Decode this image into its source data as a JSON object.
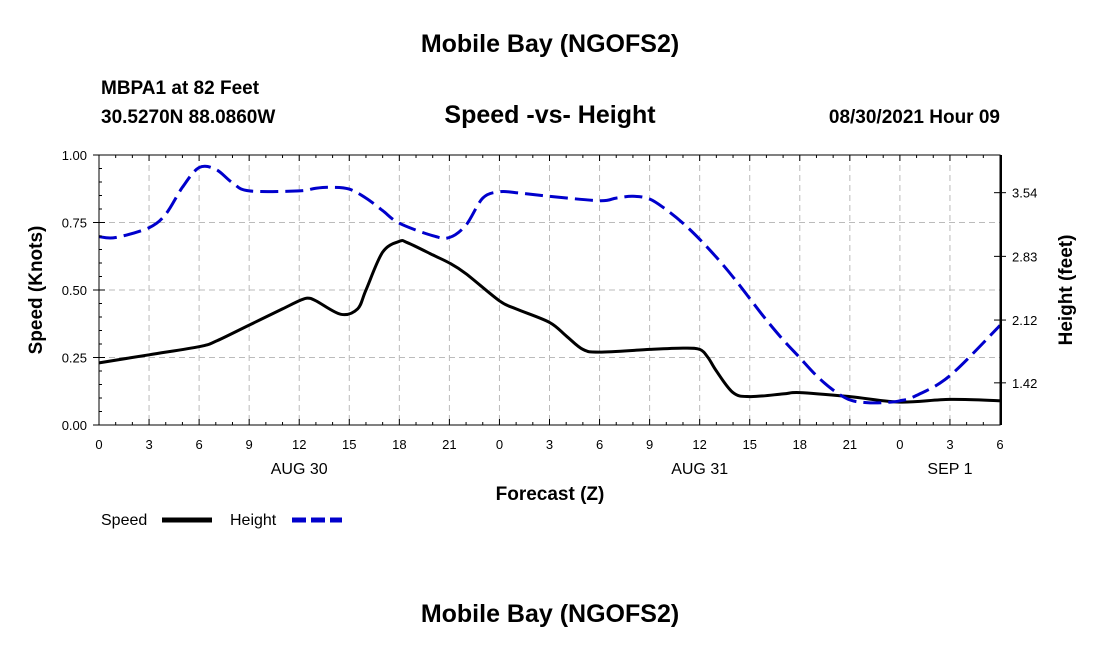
{
  "page": {
    "title": "Mobile Bay (NGOFS2)",
    "bottom_title": "Mobile Bay (NGOFS2)",
    "station_name": "MBPA1 at 82 Feet",
    "station_coords": "30.5270N  88.0860W",
    "chart_title": "Speed -vs- Height",
    "datetime": "08/30/2021 Hour 09"
  },
  "colors": {
    "speed": "#000000",
    "height": "#0000cc",
    "grid": "#bbbbbb"
  },
  "chart_data": {
    "type": "line",
    "title": "Speed -vs- Height",
    "xlabel": "Forecast (Z)",
    "ylabel": "Speed (Knots)",
    "y2label": "Height (feet)",
    "xlim": [
      0,
      54
    ],
    "ylim": [
      0,
      1.0
    ],
    "y2lim": [
      0.95,
      3.96
    ],
    "x_ticks": [
      0,
      3,
      6,
      9,
      12,
      15,
      18,
      21,
      24,
      27,
      30,
      33,
      36,
      39,
      42,
      45,
      48,
      51,
      54
    ],
    "x_tick_labels": [
      "0",
      "3",
      "6",
      "9",
      "12",
      "15",
      "18",
      "21",
      "0",
      "3",
      "6",
      "9",
      "12",
      "15",
      "18",
      "21",
      "0",
      "3",
      "6"
    ],
    "y_ticks": [
      0,
      0.25,
      0.5,
      0.75,
      1.0
    ],
    "y_tick_labels": [
      "0.00",
      "0.25",
      "0.50",
      "0.75",
      "1.00"
    ],
    "y2_ticks": [
      1.42,
      2.12,
      2.83,
      3.54
    ],
    "y2_tick_labels": [
      "1.42",
      "2.12",
      "2.83",
      "3.54"
    ],
    "date_labels": [
      {
        "x": 12,
        "label": "AUG 30"
      },
      {
        "x": 36,
        "label": "AUG 31"
      },
      {
        "x": 51,
        "label": "SEP 1"
      }
    ],
    "grid": true,
    "legend_position": "bottom-left",
    "series": [
      {
        "name": "Speed",
        "axis": "left",
        "style": "solid",
        "x": [
          0,
          3,
          6,
          7,
          9,
          11,
          12,
          12.5,
          13,
          14.5,
          15.5,
          16,
          17,
          18,
          18.5,
          20,
          21,
          22,
          24,
          25,
          27,
          28,
          29,
          30,
          33,
          35,
          36,
          36.5,
          37,
          38,
          39,
          41,
          42,
          45,
          48,
          51,
          54
        ],
        "y": [
          0.23,
          0.26,
          0.29,
          0.31,
          0.37,
          0.43,
          0.46,
          0.47,
          0.46,
          0.41,
          0.43,
          0.5,
          0.64,
          0.68,
          0.675,
          0.63,
          0.6,
          0.56,
          0.46,
          0.43,
          0.38,
          0.33,
          0.28,
          0.27,
          0.28,
          0.285,
          0.28,
          0.25,
          0.2,
          0.12,
          0.105,
          0.115,
          0.12,
          0.105,
          0.085,
          0.095,
          0.09
        ]
      },
      {
        "name": "Height",
        "axis": "right",
        "style": "dashed",
        "x": [
          0,
          1,
          3,
          4,
          5,
          6,
          7,
          8,
          9,
          12,
          13,
          14,
          15,
          16,
          17,
          18,
          20,
          21,
          22,
          23,
          24,
          25,
          27,
          30,
          31,
          32,
          33,
          34,
          35,
          36,
          37,
          38,
          39,
          40,
          41,
          42,
          43,
          44,
          45,
          46,
          47,
          48,
          49,
          51,
          54
        ],
        "y": [
          3.05,
          3.04,
          3.15,
          3.3,
          3.6,
          3.82,
          3.8,
          3.65,
          3.56,
          3.56,
          3.59,
          3.6,
          3.58,
          3.48,
          3.34,
          3.2,
          3.06,
          3.04,
          3.18,
          3.48,
          3.55,
          3.54,
          3.5,
          3.45,
          3.48,
          3.5,
          3.47,
          3.35,
          3.2,
          3.02,
          2.82,
          2.6,
          2.36,
          2.12,
          1.9,
          1.7,
          1.5,
          1.34,
          1.23,
          1.2,
          1.2,
          1.22,
          1.28,
          1.5,
          2.06
        ]
      }
    ]
  }
}
